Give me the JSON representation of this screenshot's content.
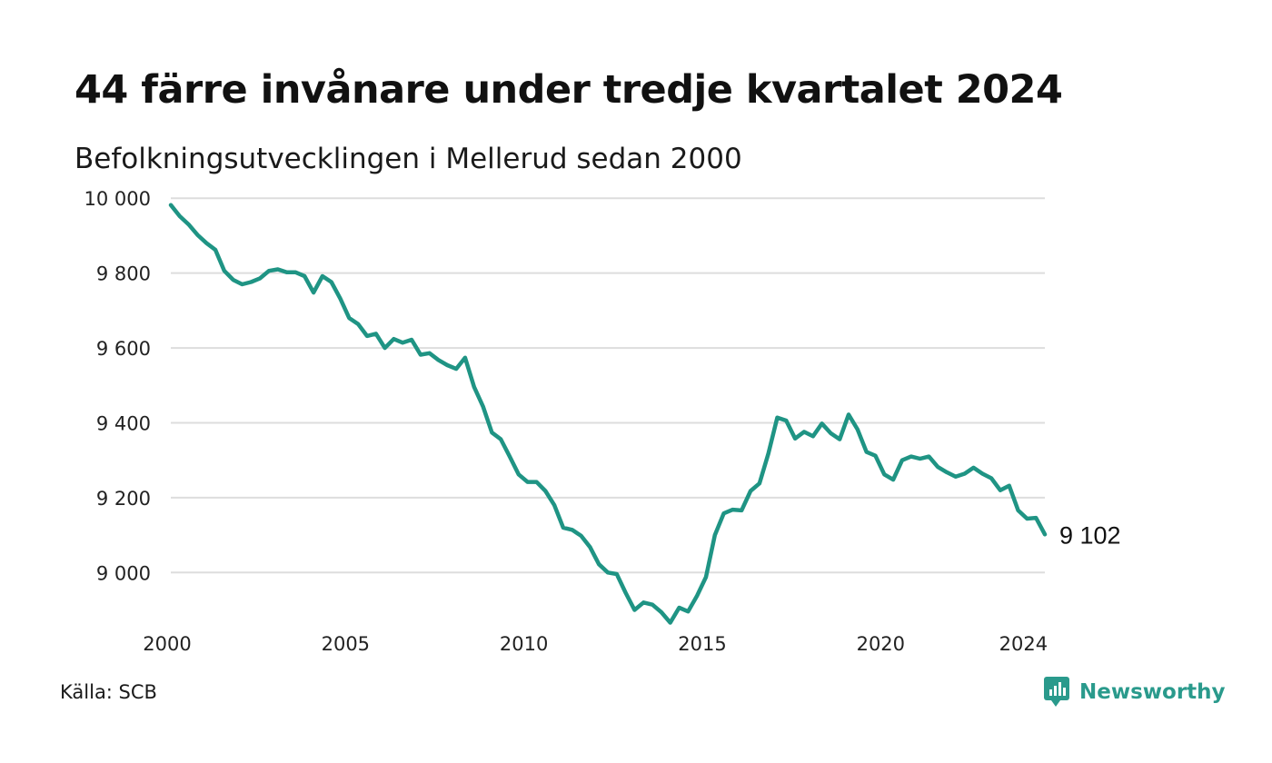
{
  "title": "44 färre invånare under tredje kvartalet 2024",
  "subtitle": "Befolkningsutvecklingen i Mellerud sedan 2000",
  "source": "Källa: SCB",
  "brand": "Newsworthy",
  "colors": {
    "line": "#1f9484",
    "grid": "#dddddd",
    "brand": "#2a9a8c"
  },
  "chart_data": {
    "type": "line",
    "x_start": 2000.0,
    "x_step": 0.25,
    "xlim": [
      2000,
      2024.5
    ],
    "ylim": [
      8860,
      10020
    ],
    "x_ticks": [
      2000,
      2005,
      2010,
      2015,
      2020,
      2024
    ],
    "x_tick_labels": [
      "2000",
      "2005",
      "2010",
      "2015",
      "2020",
      "2024"
    ],
    "y_ticks": [
      9000,
      9200,
      9400,
      9600,
      9800,
      10000
    ],
    "y_tick_labels": [
      "9 000",
      "9 200",
      "9 400",
      "9 600",
      "9 800",
      "10 000"
    ],
    "grid": "horizontal",
    "end_label": "9 102",
    "values": [
      9982,
      9952,
      9930,
      9902,
      9880,
      9862,
      9806,
      9782,
      9770,
      9776,
      9786,
      9806,
      9810,
      9802,
      9802,
      9792,
      9748,
      9792,
      9776,
      9732,
      9680,
      9664,
      9632,
      9638,
      9600,
      9624,
      9614,
      9622,
      9582,
      9586,
      9568,
      9554,
      9544,
      9574,
      9496,
      9444,
      9374,
      9356,
      9310,
      9262,
      9242,
      9242,
      9218,
      9180,
      9120,
      9114,
      9098,
      9068,
      9022,
      9000,
      8996,
      8946,
      8900,
      8920,
      8914,
      8894,
      8866,
      8906,
      8896,
      8938,
      8988,
      9100,
      9158,
      9168,
      9166,
      9218,
      9238,
      9318,
      9414,
      9406,
      9358,
      9376,
      9364,
      9398,
      9372,
      9356,
      9422,
      9382,
      9322,
      9312,
      9262,
      9248,
      9300,
      9310,
      9304,
      9310,
      9282,
      9268,
      9256,
      9264,
      9280,
      9264,
      9252,
      9220,
      9232,
      9166,
      9144,
      9146,
      9102
    ]
  }
}
